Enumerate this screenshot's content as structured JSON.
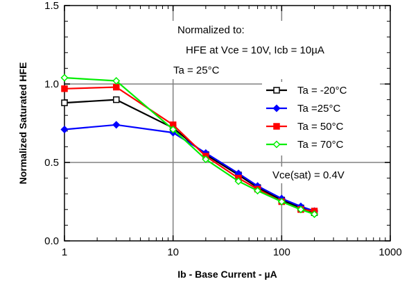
{
  "chart_data": {
    "type": "line",
    "xlabel": "Ib - Base Current - µA",
    "ylabel": "Normalized  Saturated  HFE",
    "xscale": "log",
    "xlim": [
      1,
      1000
    ],
    "ylim": [
      0.0,
      1.5
    ],
    "xticks": [
      1,
      10,
      100,
      1000
    ],
    "xtick_labels": [
      "1",
      "10",
      "100",
      "1000"
    ],
    "yticks": [
      0.0,
      0.5,
      1.0,
      1.5
    ],
    "ytick_labels": [
      "0.0",
      "0.5",
      "1.0",
      "1.5"
    ],
    "grid": true,
    "legend_position": "right",
    "annotations": [
      "Normalized to:",
      "HFE at Vce = 10V, Icb = 10µA",
      "Ta = 25°C",
      "Vce(sat) = 0.4V"
    ],
    "series": [
      {
        "name": "Ta = -20°C",
        "color": "#000000",
        "marker": "square-open",
        "x": [
          1,
          3,
          10,
          20,
          40,
          60,
          100,
          150,
          200
        ],
        "y": [
          0.88,
          0.9,
          0.72,
          0.55,
          0.42,
          0.34,
          0.26,
          0.21,
          0.18
        ]
      },
      {
        "name": "Ta =25°C",
        "color": "#0000ff",
        "marker": "diamond-filled",
        "x": [
          1,
          3,
          10,
          20,
          40,
          60,
          100,
          150,
          200
        ],
        "y": [
          0.71,
          0.74,
          0.69,
          0.56,
          0.43,
          0.35,
          0.27,
          0.22,
          0.19
        ]
      },
      {
        "name": "Ta = 50°C",
        "color": "#ff0000",
        "marker": "square-filled",
        "x": [
          1,
          3,
          10,
          20,
          40,
          60,
          100,
          150,
          200
        ],
        "y": [
          0.97,
          0.98,
          0.74,
          0.54,
          0.4,
          0.33,
          0.25,
          0.2,
          0.19
        ]
      },
      {
        "name": "Ta = 70°C",
        "color": "#00ee00",
        "marker": "diamond-open",
        "x": [
          1,
          3,
          10,
          20,
          40,
          60,
          100,
          150,
          200
        ],
        "y": [
          1.04,
          1.02,
          0.71,
          0.52,
          0.38,
          0.32,
          0.25,
          0.2,
          0.17
        ]
      }
    ]
  }
}
